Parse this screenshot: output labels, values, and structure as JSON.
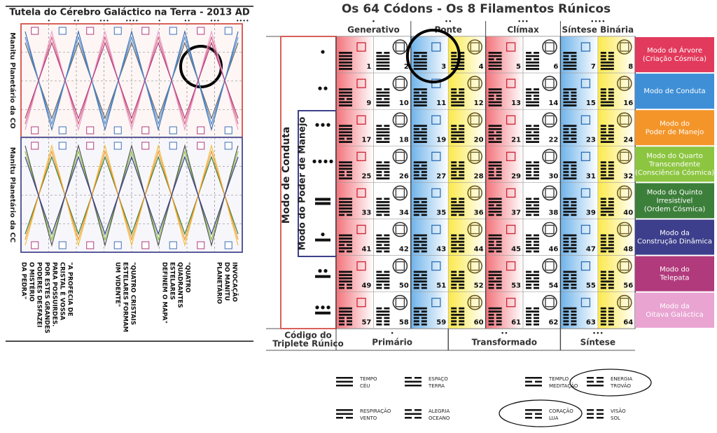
{
  "left": {
    "title": "Tutela do Cérebro Galáctico na Terra - 2013 AD",
    "side_labels": [
      "Manitu Planetário da CO",
      "Manitu Planetário da CC"
    ],
    "captions": [
      [
        "INVOCAÇÃO",
        "DO MANITU",
        "PLANETÁRIO"
      ],
      [
        "\"QUATRO",
        "QUADRANTES",
        "ESTELARES",
        "DEFINEM O MAPA\""
      ],
      [
        "\"QUATRO CRISTAIS",
        "ESTELARES FORMAM",
        "UM VIDENTE\""
      ],
      [
        "\"A PROFECIA DE",
        "CRISTAL É VOSSA",
        "PARA POSSUIRDES.",
        "POR ESTES GRANDES",
        "PODERES DESFAZEI",
        "O MISTÉRIO",
        "DA PEDRA\""
      ]
    ]
  },
  "right": {
    "title": "Os 64 Códons - Os 8 Filamentos Rúnicos",
    "columns": [
      "Generativo",
      "Ponte",
      "Clímax",
      "Síntese Binária"
    ],
    "side_labels": [
      "Modo de Conduta",
      "Modo do Poder de Manejo"
    ],
    "modes": [
      {
        "label": [
          "Modo da Árvore",
          "(Criação Cósmica)"
        ],
        "color": "#e23a5c"
      },
      {
        "label": [
          "Modo de Conduta"
        ],
        "color": "#3f8fd6"
      },
      {
        "label": [
          "Modo do",
          "Poder de Manejo"
        ],
        "color": "#f4952a"
      },
      {
        "label": [
          "Modo do Quarto",
          "Transcendente",
          "(Consciência Cósmica)"
        ],
        "color": "#8cc540"
      },
      {
        "label": [
          "Modo do Quinto",
          "Irresistível",
          "(Ordem Cósmica)"
        ],
        "color": "#3c7f3a"
      },
      {
        "label": [
          "Modo da",
          "Construção Dinâmica"
        ],
        "color": "#3d3f8c"
      },
      {
        "label": [
          "Modo do",
          "Telepata"
        ],
        "color": "#b13a7c"
      },
      {
        "label": [
          "Modo da",
          "Oitava Galáctica"
        ],
        "color": "#e9a4d2"
      }
    ],
    "codons": [
      1,
      2,
      3,
      4,
      5,
      6,
      7,
      8,
      9,
      10,
      11,
      12,
      13,
      14,
      15,
      16,
      17,
      18,
      19,
      20,
      21,
      22,
      23,
      24,
      25,
      26,
      27,
      28,
      29,
      30,
      31,
      32,
      33,
      34,
      35,
      36,
      37,
      38,
      39,
      40,
      41,
      42,
      43,
      44,
      45,
      46,
      47,
      48,
      49,
      50,
      51,
      52,
      53,
      54,
      55,
      56,
      57,
      58,
      59,
      60,
      61,
      62,
      63,
      64
    ],
    "footer_label": [
      "Código do",
      "Triplete Rúnico"
    ],
    "footer_columns": [
      "Primário",
      "Transformado",
      "Síntese"
    ]
  },
  "legend": [
    {
      "lines": [
        "TEMPO",
        "CÉU"
      ]
    },
    {
      "lines": [
        "ESPAÇO",
        "TERRA"
      ]
    },
    {
      "lines": [
        "TEMPLO",
        "MEDITAÇÃO"
      ]
    },
    {
      "lines": [
        "ENERGIA",
        "TROVÃO"
      ]
    },
    {
      "lines": [
        "RESPIRAÇÃO",
        "VENTO"
      ]
    },
    {
      "lines": [
        "ALEGRIA",
        "OCEANO"
      ]
    },
    {
      "lines": [
        "CORAÇÃO",
        "LUA"
      ]
    },
    {
      "lines": [
        "VISÃO",
        "SOL"
      ]
    }
  ]
}
